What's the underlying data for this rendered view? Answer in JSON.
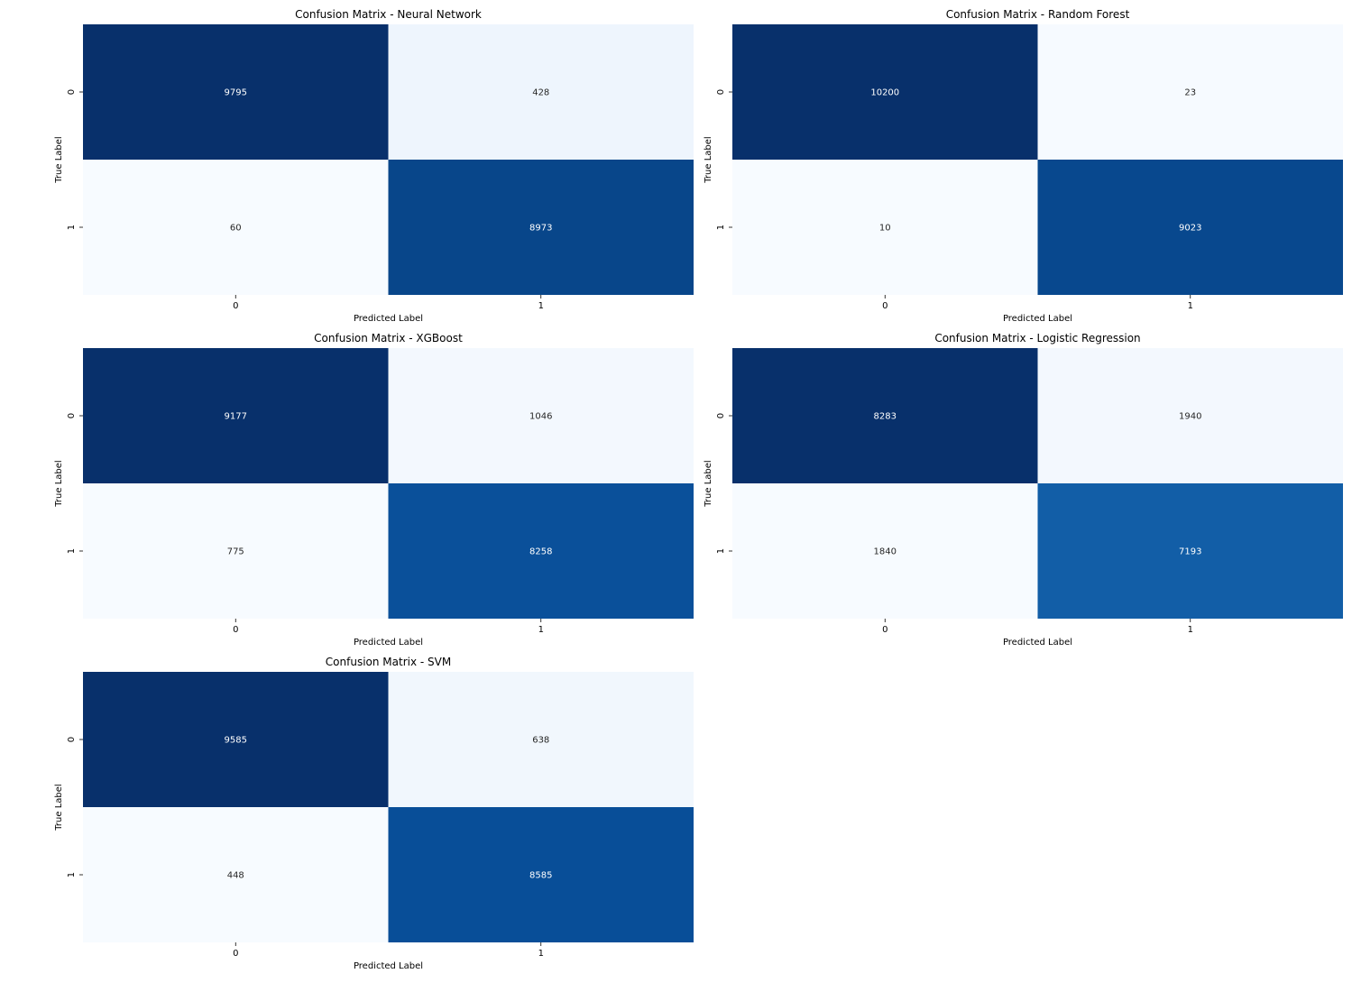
{
  "chart_data": [
    {
      "type": "heatmap",
      "title": "Confusion Matrix - Neural Network",
      "xlabel": "Predicted Label",
      "ylabel": "True Label",
      "x_categories": [
        "0",
        "1"
      ],
      "y_categories": [
        "0",
        "1"
      ],
      "values": [
        [
          9795,
          428
        ],
        [
          60,
          8973
        ]
      ],
      "colormap": "Blues",
      "colors": [
        [
          "#08306b",
          "#eef5fd"
        ],
        [
          "#f7fbff",
          "#08468a"
        ]
      ]
    },
    {
      "type": "heatmap",
      "title": "Confusion Matrix - Random Forest",
      "xlabel": "Predicted Label",
      "ylabel": "True Label",
      "x_categories": [
        "0",
        "1"
      ],
      "y_categories": [
        "0",
        "1"
      ],
      "values": [
        [
          10200,
          23
        ],
        [
          10,
          9023
        ]
      ],
      "colormap": "Blues",
      "colors": [
        [
          "#08306b",
          "#f6faff"
        ],
        [
          "#f7fbff",
          "#08488e"
        ]
      ]
    },
    {
      "type": "heatmap",
      "title": "Confusion Matrix - XGBoost",
      "xlabel": "Predicted Label",
      "ylabel": "True Label",
      "x_categories": [
        "0",
        "1"
      ],
      "y_categories": [
        "0",
        "1"
      ],
      "values": [
        [
          9177,
          1046
        ],
        [
          775,
          8258
        ]
      ],
      "colormap": "Blues",
      "colors": [
        [
          "#08306b",
          "#f3f8fe"
        ],
        [
          "#f7fbff",
          "#0a509a"
        ]
      ]
    },
    {
      "type": "heatmap",
      "title": "Confusion Matrix - Logistic Regression",
      "xlabel": "Predicted Label",
      "ylabel": "True Label",
      "x_categories": [
        "0",
        "1"
      ],
      "y_categories": [
        "0",
        "1"
      ],
      "values": [
        [
          8283,
          1940
        ],
        [
          1840,
          7193
        ]
      ],
      "colormap": "Blues",
      "colors": [
        [
          "#08306b",
          "#f3f8fe"
        ],
        [
          "#f7fbff",
          "#125ea7"
        ]
      ]
    },
    {
      "type": "heatmap",
      "title": "Confusion Matrix - SVM",
      "xlabel": "Predicted Label",
      "ylabel": "True Label",
      "x_categories": [
        "0",
        "1"
      ],
      "y_categories": [
        "0",
        "1"
      ],
      "values": [
        [
          9585,
          638
        ],
        [
          448,
          8585
        ]
      ],
      "colormap": "Blues",
      "colors": [
        [
          "#08306b",
          "#f1f7fd"
        ],
        [
          "#f7fbff",
          "#084e98"
        ]
      ]
    }
  ]
}
